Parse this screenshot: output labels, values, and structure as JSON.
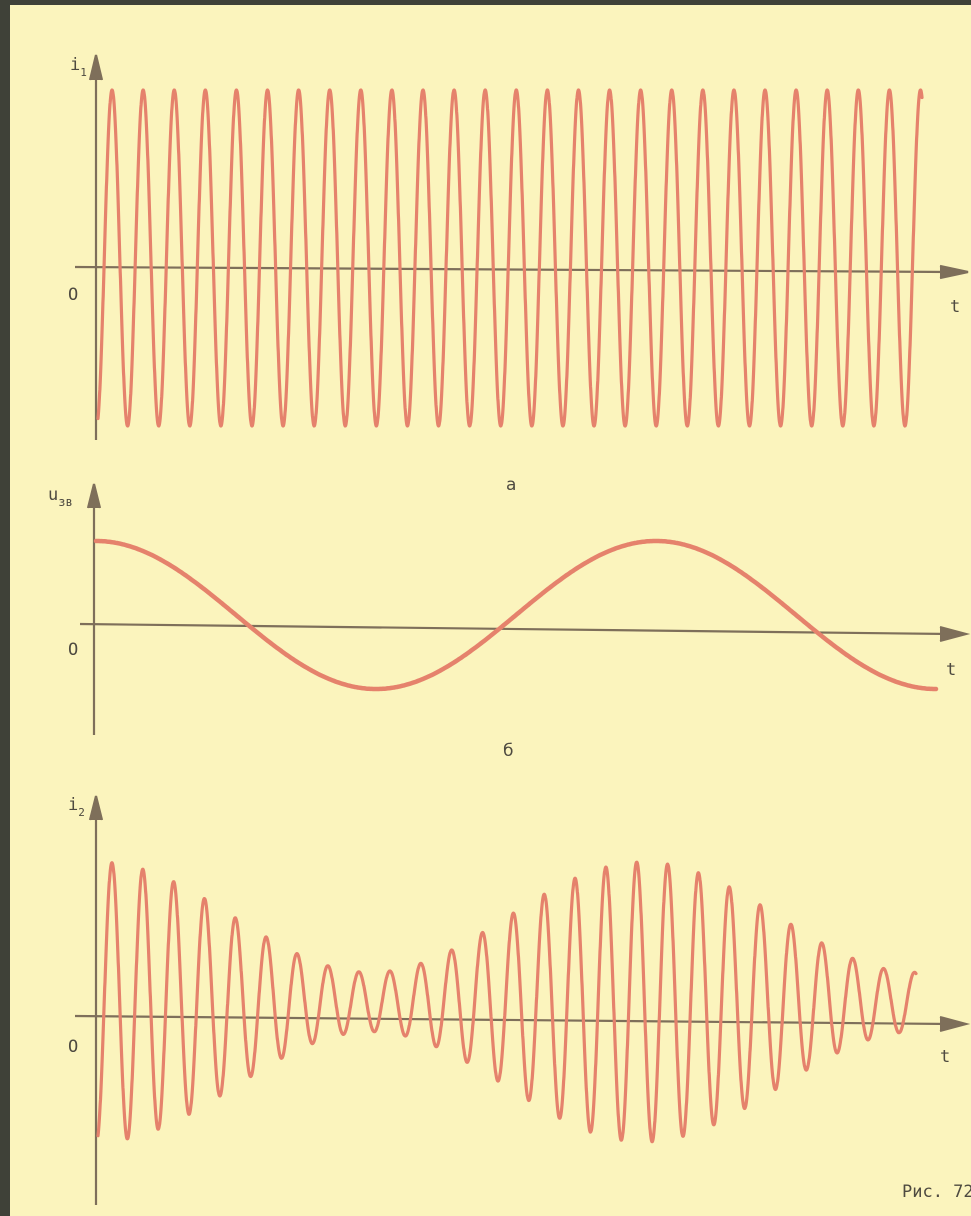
{
  "colors": {
    "paper": "#fbf4bd",
    "frame": "#3f4138",
    "wave": "#e5826c",
    "axis": "#7e6f5a",
    "text": "#4e4a40"
  },
  "panels": [
    {
      "id": "a",
      "caption": "а",
      "y_label_main": "i",
      "y_label_sub": "1",
      "origin_label": "O",
      "x_label": "t",
      "description": "constant-amplitude carrier",
      "cycles": 26.5,
      "amplitude": 1.0
    },
    {
      "id": "b",
      "caption": "б",
      "y_label_main": "u",
      "y_label_sub": "зв",
      "origin_label": "O",
      "x_label": "t",
      "description": "modulating sound signal",
      "cycles": 1.5,
      "amplitude": 1.0
    },
    {
      "id": "c",
      "caption": "",
      "y_label_main": "i",
      "y_label_sub": "2",
      "origin_label": "O",
      "x_label": "t",
      "description": "amplitude-modulated current",
      "cycles": 26.5,
      "modulation_depth": 0.65
    }
  ],
  "figure_label": "Рис. 72"
}
